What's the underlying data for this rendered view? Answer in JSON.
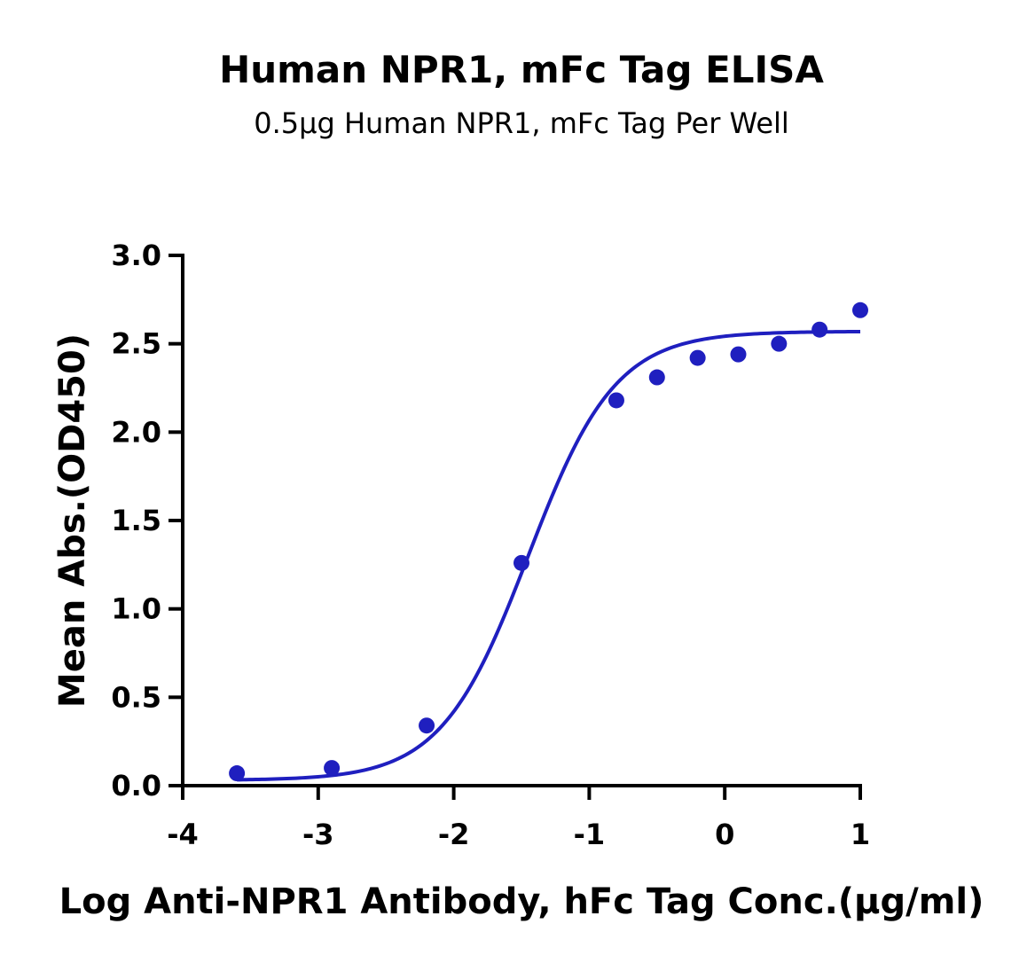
{
  "chart_data": {
    "type": "scatter",
    "title": "Human NPR1, mFc Tag ELISA",
    "subtitle": "0.5μg Human NPR1, mFc Tag Per Well",
    "xlabel": "Log Anti-NPR1 Antibody, hFc Tag Conc.(μg/ml)",
    "ylabel": "Mean Abs.(OD450)",
    "xlim": [
      -4,
      1
    ],
    "ylim": [
      0,
      3
    ],
    "x_ticks": [
      "-4",
      "-3",
      "-2",
      "-1",
      "0",
      "1"
    ],
    "y_ticks": [
      "0.0",
      "0.5",
      "1.0",
      "1.5",
      "2.0",
      "2.5",
      "3.0"
    ],
    "grid": false,
    "color": "#1f1fbf",
    "series": [
      {
        "points": [
          {
            "x": -3.6,
            "y": 0.07
          },
          {
            "x": -2.9,
            "y": 0.1
          },
          {
            "x": -2.2,
            "y": 0.34
          },
          {
            "x": -1.5,
            "y": 1.26
          },
          {
            "x": -0.8,
            "y": 2.18
          },
          {
            "x": -0.5,
            "y": 2.31
          },
          {
            "x": -0.2,
            "y": 2.42
          },
          {
            "x": 0.1,
            "y": 2.44
          },
          {
            "x": 0.4,
            "y": 2.5
          },
          {
            "x": 0.7,
            "y": 2.58
          },
          {
            "x": 1.0,
            "y": 2.69
          }
        ],
        "fit": {
          "bottom": 0.03,
          "top": 2.57,
          "log_ec50": -1.45,
          "hill_slope": 1.35
        }
      }
    ]
  }
}
